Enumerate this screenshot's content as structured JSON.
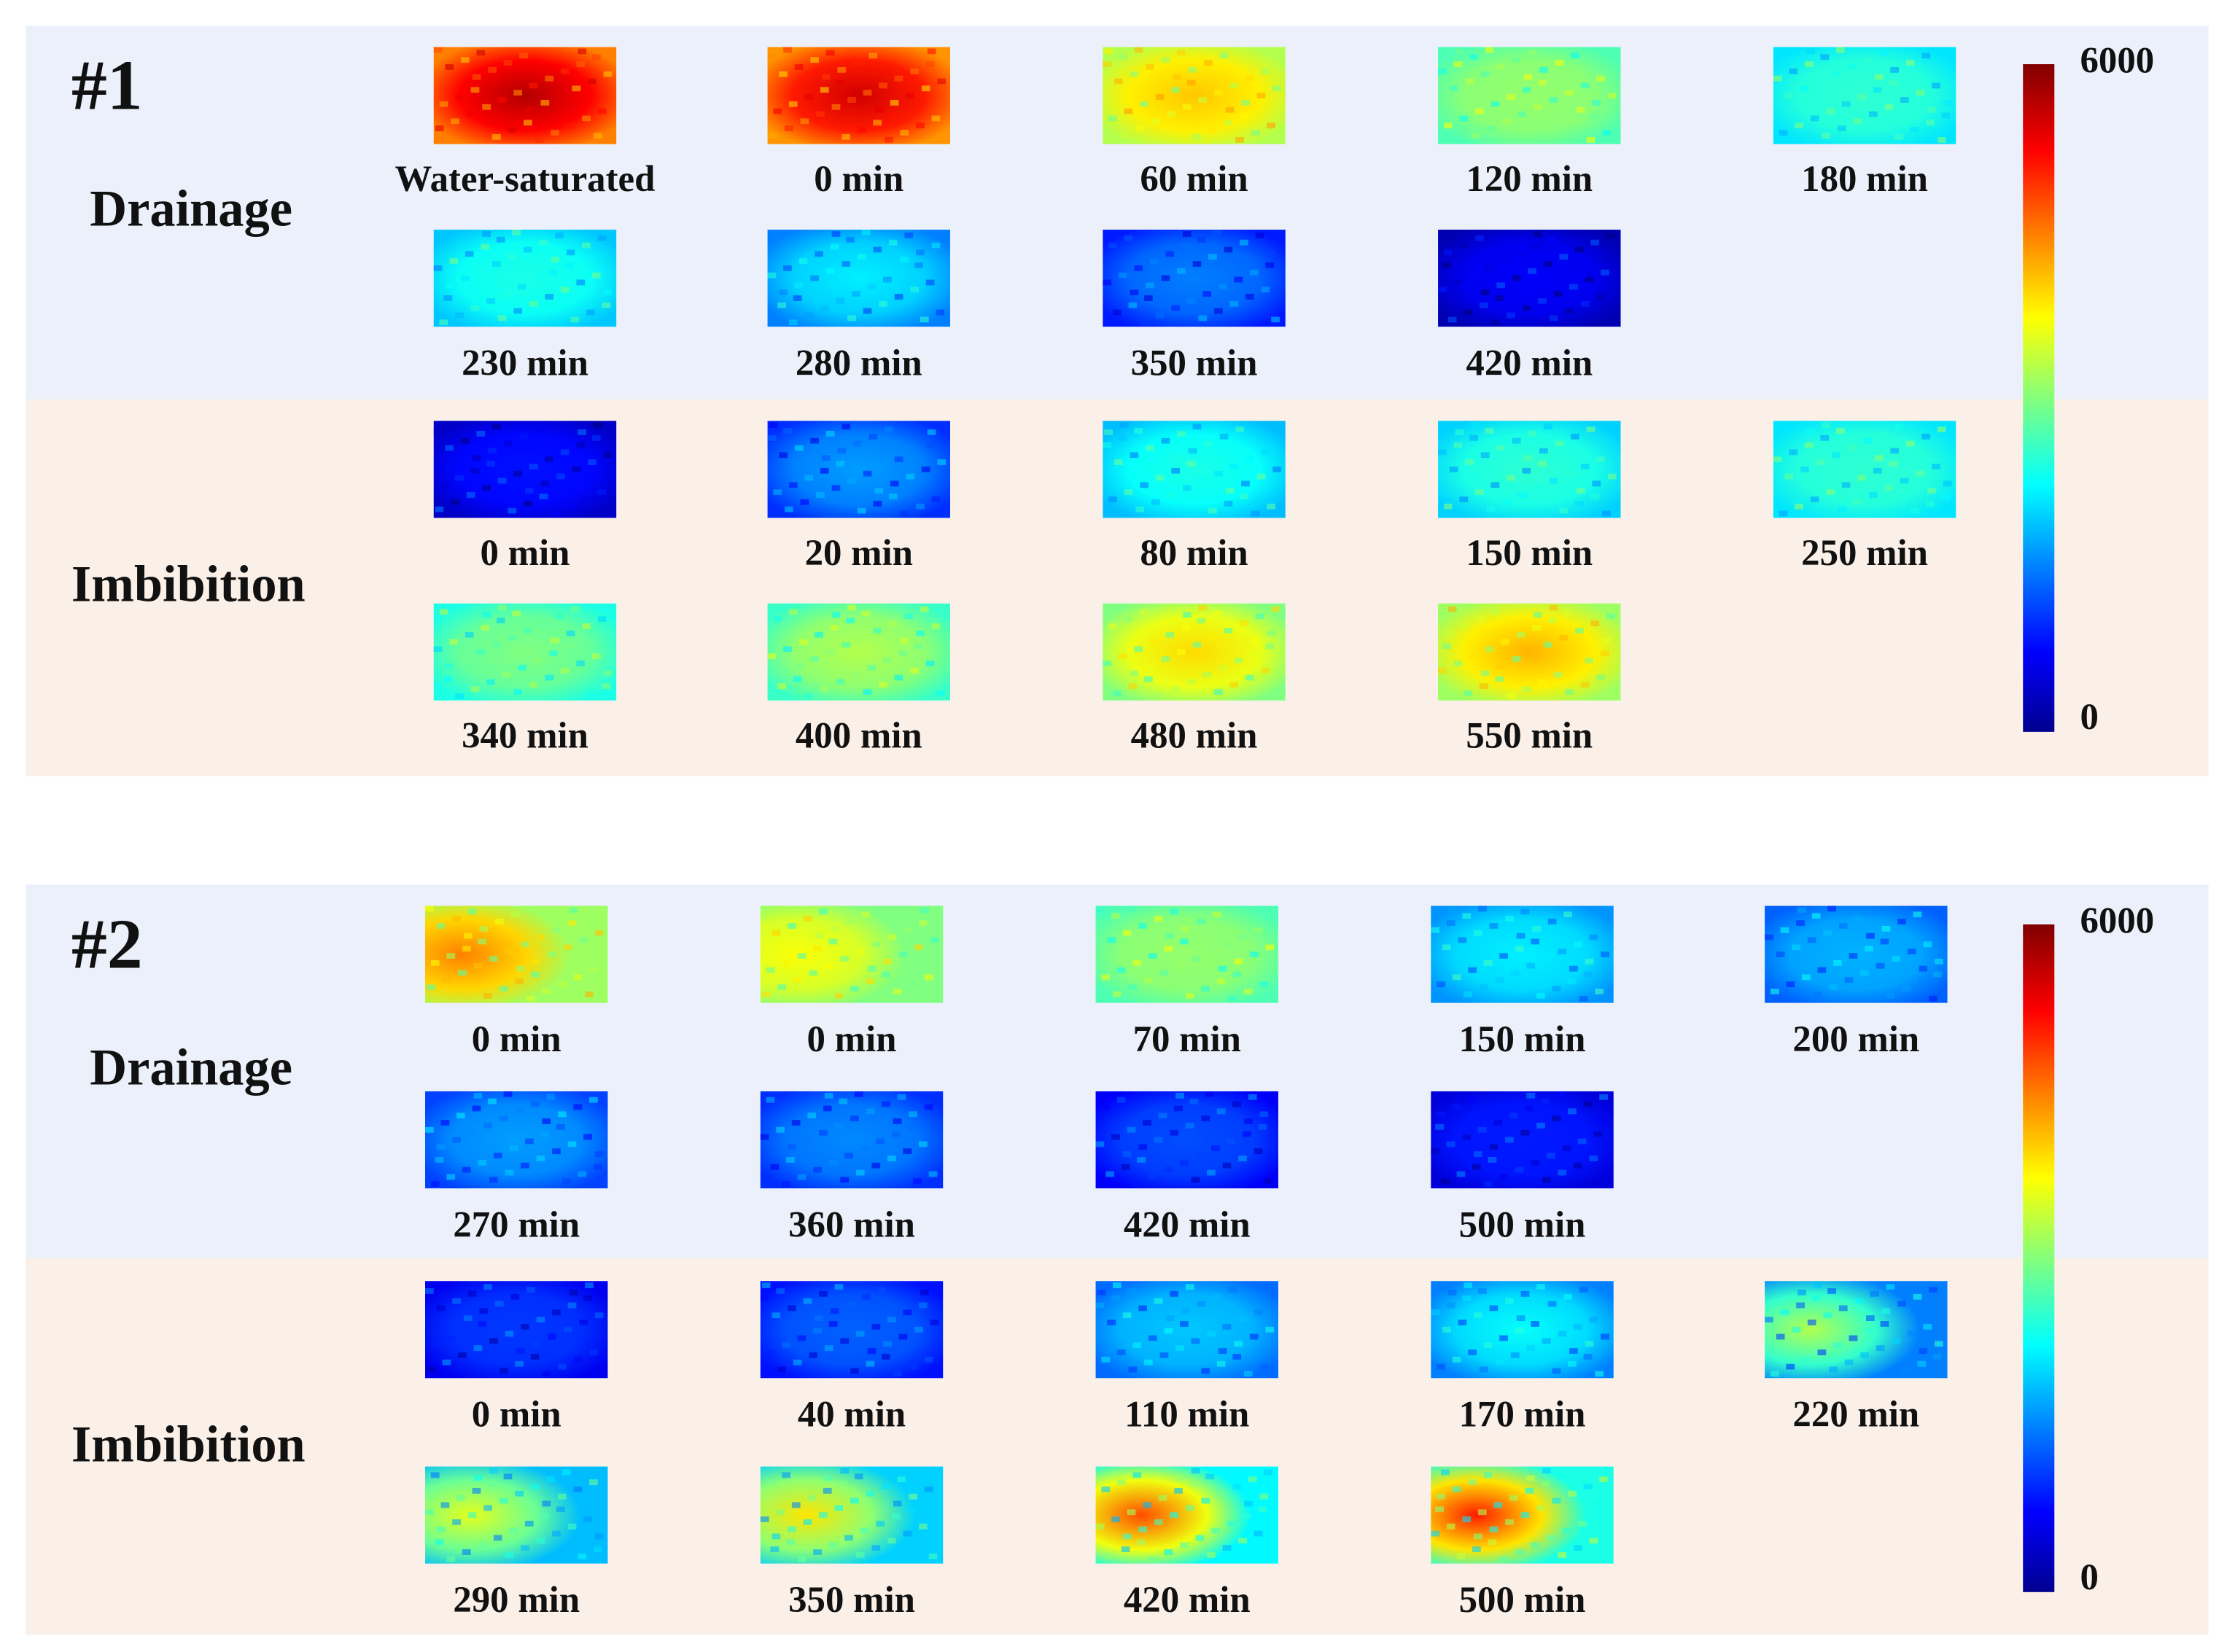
{
  "panels": [
    {
      "label": "#1",
      "sections": [
        {
          "title": "Drainage",
          "images": [
            "Water-saturated",
            "0 min",
            "60 min",
            "120 min",
            "180 min",
            "230 min",
            "280 min",
            "350 min",
            "420 min"
          ]
        },
        {
          "title": "Imbibition",
          "images": [
            "0 min",
            "20 min",
            "80 min",
            "150 min",
            "250 min",
            "340 min",
            "400 min",
            "480 min",
            "550 min"
          ]
        }
      ],
      "colorbar": {
        "max": "6000",
        "min": "0"
      }
    },
    {
      "label": "#2",
      "sections": [
        {
          "title": "Drainage",
          "images": [
            "0 min",
            "0 min",
            "70 min",
            "150 min",
            "200 min",
            "270 min",
            "360 min",
            "420 min",
            "500 min"
          ]
        },
        {
          "title": "Imbibition",
          "images": [
            "0 min",
            "40 min",
            "110 min",
            "170 min",
            "220 min",
            "290 min",
            "350 min",
            "420 min",
            "500 min"
          ]
        }
      ],
      "colorbar": {
        "max": "6000",
        "min": "0"
      }
    }
  ]
}
